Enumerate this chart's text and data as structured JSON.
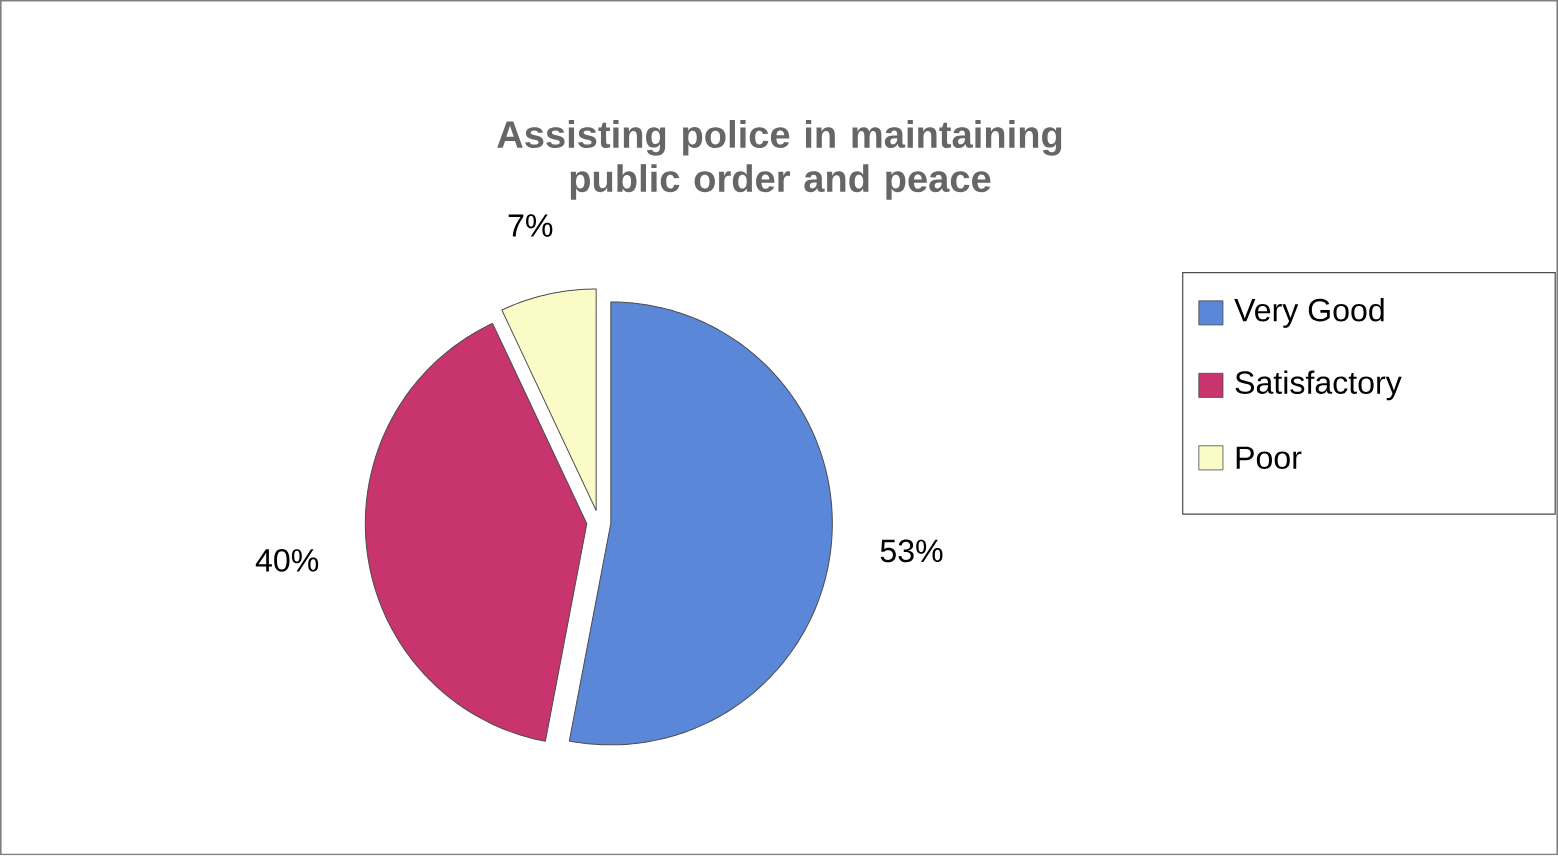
{
  "chart_data": {
    "type": "pie",
    "title": "Assisting police in maintaining public order and peace",
    "categories": [
      "Very Good",
      "Satisfactory",
      "Poor"
    ],
    "values": [
      53,
      40,
      7
    ],
    "colors": [
      "#5b87d8",
      "#c7346e",
      "#fbfbc8"
    ],
    "value_labels": [
      "53%",
      "40%",
      "7%"
    ],
    "legend": "right"
  }
}
